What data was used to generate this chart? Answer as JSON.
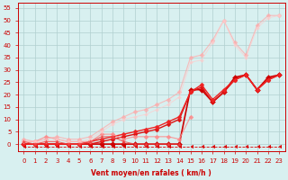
{
  "bg_color": "#d8f0f0",
  "grid_color": "#b0d0d0",
  "axis_color": "#cc0000",
  "xlabel": "Vent moyen/en rafales ( km/h )",
  "xlim": [
    -0.5,
    23.5
  ],
  "ylim": [
    -3,
    57
  ],
  "yticks": [
    0,
    5,
    10,
    15,
    20,
    25,
    30,
    35,
    40,
    45,
    50,
    55
  ],
  "xticks": [
    0,
    1,
    2,
    3,
    4,
    5,
    6,
    7,
    8,
    9,
    10,
    11,
    12,
    13,
    14,
    15,
    16,
    17,
    18,
    19,
    20,
    21,
    22,
    23
  ],
  "lines": [
    {
      "x": [
        0,
        1,
        2,
        3,
        4,
        5,
        6,
        7,
        8,
        9,
        10,
        11,
        12,
        13,
        14,
        15,
        16,
        17,
        18,
        19,
        20,
        21,
        22,
        23
      ],
      "y": [
        -1,
        -1,
        -1,
        -1,
        -1,
        -1,
        -1,
        -1,
        -1,
        -1,
        -1,
        -1,
        -1,
        -1,
        -1,
        -1,
        -1,
        -1,
        -1,
        -1,
        -1,
        -1,
        -1,
        -1
      ],
      "color": "#dd0000",
      "marker": 4,
      "linewidth": 0.6,
      "markersize": 3,
      "linestyle": "--",
      "alpha": 1.0
    },
    {
      "x": [
        0,
        1,
        2,
        3,
        4,
        5,
        6,
        7,
        8,
        9,
        10,
        11,
        12,
        13,
        14,
        15,
        16,
        17,
        18,
        19,
        20,
        21,
        22,
        23
      ],
      "y": [
        0,
        0,
        0,
        0,
        0,
        0,
        0,
        0,
        0,
        0,
        0,
        0,
        0,
        0,
        0,
        22,
        22,
        17,
        21,
        27,
        28,
        22,
        27,
        28
      ],
      "color": "#cc0000",
      "marker": "D",
      "linewidth": 1.2,
      "markersize": 3,
      "linestyle": "-",
      "alpha": 1.0
    },
    {
      "x": [
        0,
        1,
        2,
        3,
        4,
        5,
        6,
        7,
        8,
        9,
        10,
        11,
        12,
        13,
        14,
        15,
        16,
        17,
        18,
        19,
        20,
        21,
        22,
        23
      ],
      "y": [
        0,
        0,
        0,
        0,
        0,
        0,
        0,
        1,
        2,
        3,
        4,
        5,
        6,
        8,
        10,
        21,
        23,
        17,
        21,
        26,
        28,
        22,
        26,
        28
      ],
      "color": "#dd1111",
      "marker": "D",
      "linewidth": 1.0,
      "markersize": 2.5,
      "linestyle": "-",
      "alpha": 1.0
    },
    {
      "x": [
        0,
        1,
        2,
        3,
        4,
        5,
        6,
        7,
        8,
        9,
        10,
        11,
        12,
        13,
        14,
        15,
        16,
        17,
        18,
        19,
        20,
        21,
        22,
        23
      ],
      "y": [
        0,
        0,
        0,
        0,
        0,
        0,
        1,
        2,
        3,
        4,
        5,
        6,
        7,
        9,
        11,
        21,
        24,
        18,
        22,
        26,
        28,
        22,
        26,
        28
      ],
      "color": "#ee2222",
      "marker": "D",
      "linewidth": 1.0,
      "markersize": 2.5,
      "linestyle": "-",
      "alpha": 1.0
    },
    {
      "x": [
        0,
        1,
        2,
        3,
        4,
        5,
        6,
        7,
        8,
        9,
        10,
        11,
        12,
        13,
        14,
        15
      ],
      "y": [
        1,
        1,
        3,
        2,
        1,
        1,
        1,
        4,
        4,
        2,
        3,
        3,
        3,
        3,
        2,
        11
      ],
      "color": "#ff8888",
      "marker": "D",
      "linewidth": 0.8,
      "markersize": 2.5,
      "linestyle": "-",
      "alpha": 0.85
    },
    {
      "x": [
        0,
        1,
        2,
        3,
        4,
        5,
        6,
        7,
        8,
        9,
        10,
        11,
        12,
        13,
        14,
        15,
        16,
        17,
        18,
        19,
        20,
        21,
        22,
        23
      ],
      "y": [
        2,
        1,
        2,
        3,
        2,
        2,
        3,
        6,
        9,
        11,
        13,
        14,
        16,
        18,
        21,
        35,
        36,
        42,
        50,
        41,
        36,
        48,
        52,
        52
      ],
      "color": "#ffaaaa",
      "marker": "D",
      "linewidth": 0.8,
      "markersize": 2.5,
      "linestyle": "-",
      "alpha": 0.75
    },
    {
      "x": [
        0,
        1,
        2,
        3,
        4,
        5,
        6,
        7,
        8,
        9,
        10,
        11,
        12,
        13,
        14,
        15,
        16,
        17,
        18,
        19,
        20,
        21,
        22,
        23
      ],
      "y": [
        1,
        1,
        1,
        2,
        1,
        1,
        2,
        5,
        8,
        10,
        11,
        12,
        14,
        16,
        19,
        33,
        34,
        41,
        50,
        40,
        35,
        47,
        51,
        52
      ],
      "color": "#ffcccc",
      "marker": "D",
      "linewidth": 0.7,
      "markersize": 2,
      "linestyle": "-",
      "alpha": 0.7
    },
    {
      "x": [
        0,
        1,
        2,
        3,
        4,
        5,
        6,
        7,
        8,
        9,
        10,
        11,
        12,
        13,
        14
      ],
      "y": [
        1,
        0,
        1,
        1,
        0,
        0,
        1,
        3,
        3,
        1,
        0,
        0,
        0,
        0,
        0
      ],
      "color": "#ee4444",
      "marker": "^",
      "linewidth": 0.7,
      "markersize": 2.5,
      "linestyle": "-",
      "alpha": 0.9
    }
  ]
}
